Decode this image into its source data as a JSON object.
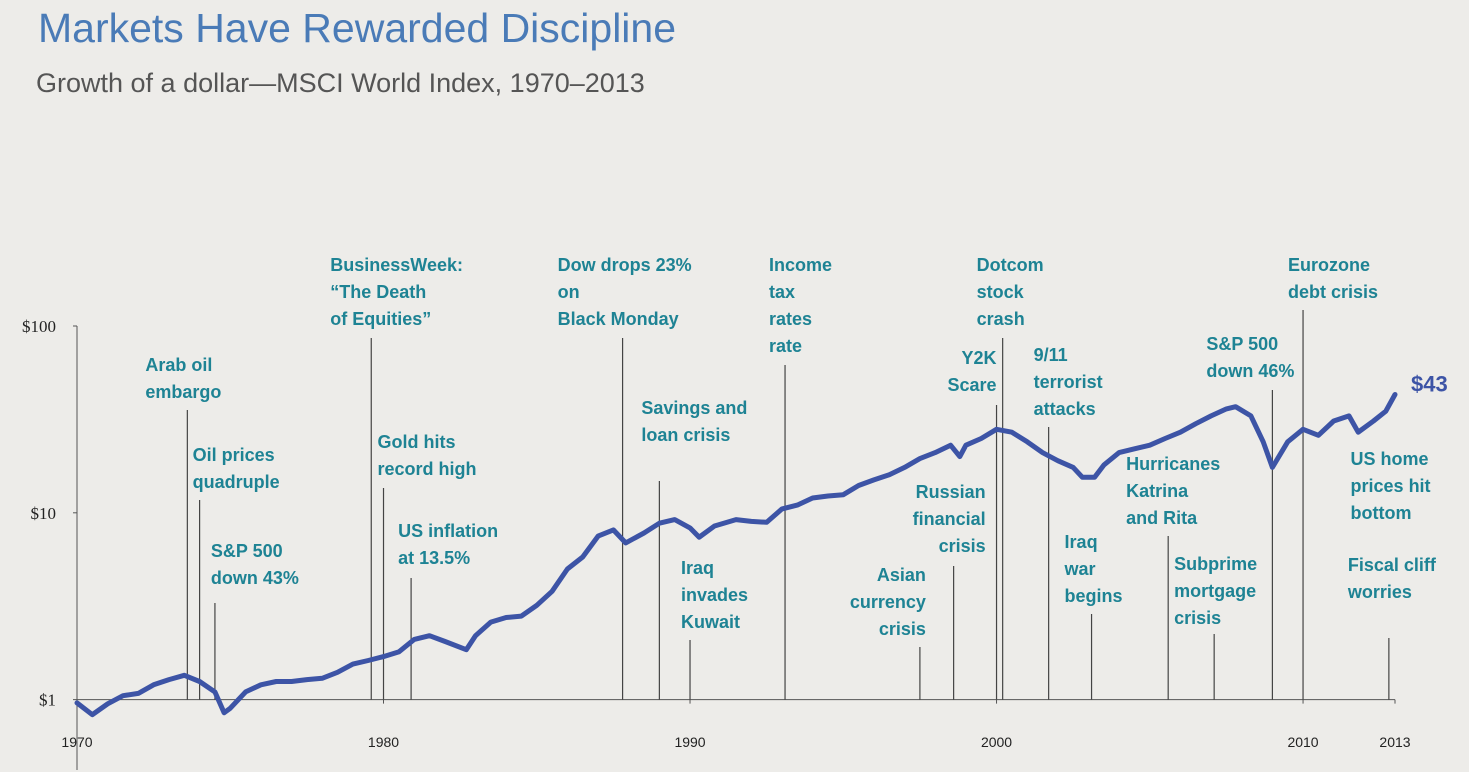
{
  "chart_data": {
    "type": "line",
    "title": "Markets Have Rewarded Discipline",
    "subtitle": "Growth of a dollar—MSCI World Index, 1970–2013",
    "log_scale": true,
    "color": "#3d54a6",
    "xlim": [
      1970,
      2013
    ],
    "xticks": [
      1970,
      1980,
      1990,
      2000,
      2010,
      2013
    ],
    "ylim": [
      0.42,
      100
    ],
    "yticks": [
      {
        "value": 1,
        "label": "$1"
      },
      {
        "value": 10,
        "label": "$10"
      },
      {
        "value": 100,
        "label": "$100"
      }
    ],
    "x": [
      1970.0,
      1970.5,
      1971.0,
      1971.5,
      1972.0,
      1972.5,
      1973.0,
      1973.5,
      1974.0,
      1974.5,
      1974.8,
      1975.0,
      1975.5,
      1976.0,
      1976.5,
      1977.0,
      1977.5,
      1978.0,
      1978.5,
      1979.0,
      1979.5,
      1980.0,
      1980.5,
      1981.0,
      1981.5,
      1982.0,
      1982.7,
      1983.0,
      1983.5,
      1984.0,
      1984.5,
      1985.0,
      1985.5,
      1986.0,
      1986.5,
      1987.0,
      1987.5,
      1987.9,
      1988.5,
      1989.0,
      1989.5,
      1990.0,
      1990.3,
      1990.8,
      1991.5,
      1992.0,
      1992.5,
      1993.0,
      1993.5,
      1994.0,
      1994.5,
      1995.0,
      1995.5,
      1996.0,
      1996.5,
      1997.0,
      1997.5,
      1998.0,
      1998.5,
      1998.8,
      1999.0,
      1999.5,
      2000.0,
      2000.5,
      2001.0,
      2001.5,
      2002.0,
      2002.5,
      2002.8,
      2003.2,
      2003.5,
      2004.0,
      2004.5,
      2005.0,
      2005.5,
      2006.0,
      2006.5,
      2007.0,
      2007.5,
      2007.8,
      2008.3,
      2008.7,
      2009.0,
      2009.5,
      2010.0,
      2010.5,
      2011.0,
      2011.5,
      2011.8,
      2012.3,
      2012.7,
      2013.0
    ],
    "values": [
      0.96,
      0.83,
      0.95,
      1.05,
      1.08,
      1.2,
      1.28,
      1.35,
      1.25,
      1.1,
      0.85,
      0.9,
      1.1,
      1.2,
      1.25,
      1.25,
      1.28,
      1.3,
      1.4,
      1.55,
      1.62,
      1.7,
      1.8,
      2.1,
      2.2,
      2.05,
      1.85,
      2.2,
      2.6,
      2.75,
      2.8,
      3.2,
      3.8,
      5.0,
      5.8,
      7.5,
      8.1,
      6.9,
      7.8,
      8.8,
      9.2,
      8.3,
      7.4,
      8.5,
      9.2,
      9.0,
      8.9,
      10.5,
      11.0,
      12.0,
      12.3,
      12.5,
      14.0,
      15.0,
      16.0,
      17.5,
      19.5,
      21.0,
      23.0,
      20.0,
      23.0,
      25.0,
      28.0,
      27.0,
      24.0,
      21.0,
      19.0,
      17.5,
      15.5,
      15.5,
      18.0,
      21.0,
      22.0,
      23.0,
      25.0,
      27.0,
      30.0,
      33.0,
      36.0,
      37.0,
      33.0,
      24.0,
      17.5,
      24.0,
      28.0,
      26.0,
      31.0,
      33.0,
      27.0,
      31.0,
      35.0,
      43
    ],
    "end_label": "$43",
    "annotations": [
      {
        "x": 1973.6,
        "text": [
          "Arab oil",
          "embargo"
        ]
      },
      {
        "x": 1974.0,
        "text": [
          "Oil prices",
          "quadruple"
        ]
      },
      {
        "x": 1974.5,
        "text": [
          "S&P 500",
          "down 43%"
        ]
      },
      {
        "x": 1979.6,
        "text": [
          "BusinessWeek:",
          "“The Death",
          "of Equities”"
        ]
      },
      {
        "x": 1980.0,
        "text": [
          "Gold hits",
          "record high"
        ]
      },
      {
        "x": 1980.9,
        "text": [
          "US inflation",
          "at 13.5%"
        ]
      },
      {
        "x": 1987.8,
        "text": [
          "Dow drops 23%",
          "on",
          "Black Monday"
        ]
      },
      {
        "x": 1989.0,
        "text": [
          "Savings and",
          "loan crisis"
        ]
      },
      {
        "x": 1990.0,
        "text": [
          "Iraq",
          "invades",
          "Kuwait"
        ]
      },
      {
        "x": 1993.1,
        "text": [
          "Income",
          "tax",
          "rates",
          "rate"
        ]
      },
      {
        "x": 1997.5,
        "text": [
          "Asian",
          "currency",
          "crisis"
        ]
      },
      {
        "x": 1998.6,
        "text": [
          "Russian",
          "financial",
          "crisis"
        ]
      },
      {
        "x": 2000.0,
        "text": [
          "Y2K",
          "Scare"
        ]
      },
      {
        "x": 2000.2,
        "text": [
          "Dotcom",
          "stock",
          "crash"
        ]
      },
      {
        "x": 2001.7,
        "text": [
          "9/11",
          "terrorist",
          "attacks"
        ]
      },
      {
        "x": 2003.1,
        "text": [
          "Iraq",
          "war",
          "begins"
        ]
      },
      {
        "x": 2005.6,
        "text": [
          "Hurricanes",
          "Katrina",
          "and Rita"
        ]
      },
      {
        "x": 2007.1,
        "text": [
          "Subprime",
          "mortgage",
          "crisis"
        ]
      },
      {
        "x": 2009.0,
        "text": [
          "S&P 500",
          "down 46%"
        ]
      },
      {
        "x": 2010.0,
        "text": [
          "Eurozone",
          "debt crisis"
        ]
      },
      {
        "x": 2012.3,
        "text": [
          "US home",
          "prices hit",
          "bottom"
        ]
      },
      {
        "x": 2012.8,
        "text": [
          "Fiscal cliff",
          "worries"
        ]
      }
    ]
  }
}
